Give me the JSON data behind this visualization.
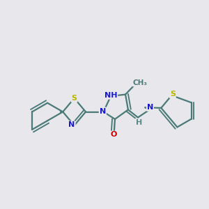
{
  "bg_color": "#e8e8ec",
  "bond_color": "#4a7a78",
  "bond_width": 1.6,
  "dbo": 0.012,
  "atom_colors": {
    "S": "#b8b800",
    "N": "#1818cc",
    "O": "#cc0000",
    "H": "#5a8a88",
    "C": "#4a7a78"
  },
  "figsize": [
    3.0,
    3.0
  ],
  "dpi": 100,
  "xlim": [
    0.0,
    1.0
  ],
  "ylim": [
    0.28,
    0.78
  ]
}
